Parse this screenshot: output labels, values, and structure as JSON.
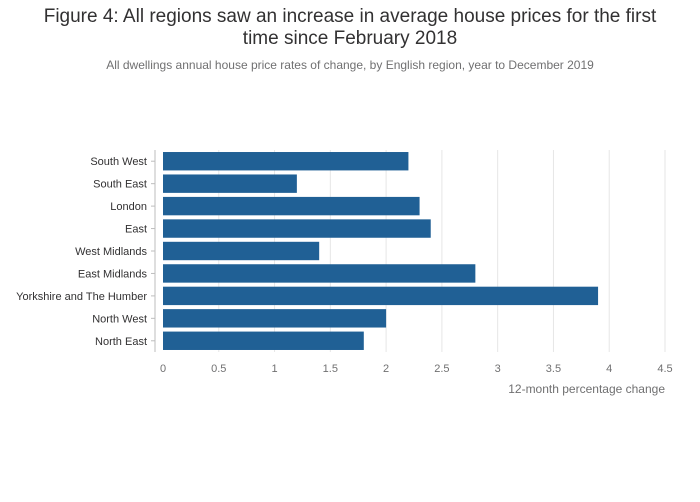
{
  "title_lines": [
    "Figure 4: All regions saw an increase in average house prices for the first",
    "time since February 2018"
  ],
  "subtitle": "All dwellings annual house price rates of change, by English region, year to December 2019",
  "colors": {
    "bar": "#206095",
    "grid": "#e6e6e6",
    "axis": "#bdbdbd"
  },
  "chart_data": {
    "type": "bar",
    "orientation": "horizontal",
    "title": "Figure 4: All regions saw an increase in average house prices for the first time since February 2018",
    "subtitle": "All dwellings annual house price rates of change, by English region, year to December 2019",
    "categories": [
      "South West",
      "South East",
      "London",
      "East",
      "West Midlands",
      "East Midlands",
      "Yorkshire and The Humber",
      "North West",
      "North East"
    ],
    "values": [
      2.2,
      1.2,
      2.3,
      2.4,
      1.4,
      2.8,
      3.9,
      2.0,
      1.8
    ],
    "xlabel": "12-month percentage change",
    "ylabel": "",
    "xlim": [
      0,
      4.5
    ],
    "xticks": [
      "0",
      "0.5",
      "1",
      "1.5",
      "2",
      "2.5",
      "3",
      "3.5",
      "4",
      "4.5"
    ],
    "grid": "vertical"
  }
}
